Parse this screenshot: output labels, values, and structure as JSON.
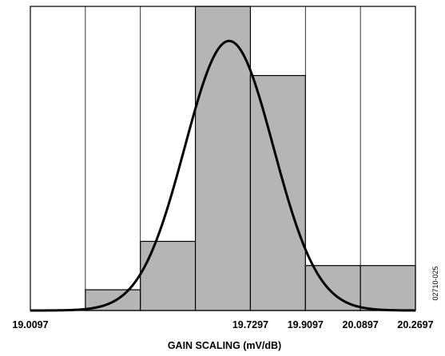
{
  "chart_data": {
    "type": "bar",
    "subtype": "histogram-with-normal-fit",
    "xlabel": "GAIN SCALING (mV/dB)",
    "ylabel": "",
    "title": "",
    "figure_id": "02710-025",
    "xlim": [
      19.0097,
      20.2697
    ],
    "x_tick_values": [
      19.0097,
      19.3697,
      19.7297,
      19.9097,
      20.0897,
      20.2697
    ],
    "x_tick_labels": [
      "19.0097",
      "",
      "19.7297",
      "19.9097",
      "20.0897",
      "20.2697"
    ],
    "bin_edges": [
      19.0097,
      19.1897,
      19.3697,
      19.5497,
      19.7297,
      19.9097,
      20.0897,
      20.2697
    ],
    "bins": [
      {
        "start": 19.0097,
        "end": 19.1897,
        "value": 0
      },
      {
        "start": 19.1897,
        "end": 19.3697,
        "value": 3
      },
      {
        "start": 19.3697,
        "end": 19.5497,
        "value": 10
      },
      {
        "start": 19.5497,
        "end": 19.7297,
        "value": 44
      },
      {
        "start": 19.7297,
        "end": 19.9097,
        "value": 34
      },
      {
        "start": 19.9097,
        "end": 20.0897,
        "value": 6.5
      },
      {
        "start": 20.0897,
        "end": 20.2697,
        "value": 6.5
      }
    ],
    "ylim": [
      0,
      44
    ],
    "fit_curve": {
      "type": "normal",
      "mean": 19.66,
      "sd": 0.145,
      "peak": 39
    },
    "grid": {
      "vertical_lines_at_bin_edges": true,
      "horizontal": false
    },
    "colors": {
      "bar_fill": "#b5b5b5",
      "bar_stroke": "#000000",
      "curve": "#000000",
      "background": "#ffffff"
    }
  }
}
